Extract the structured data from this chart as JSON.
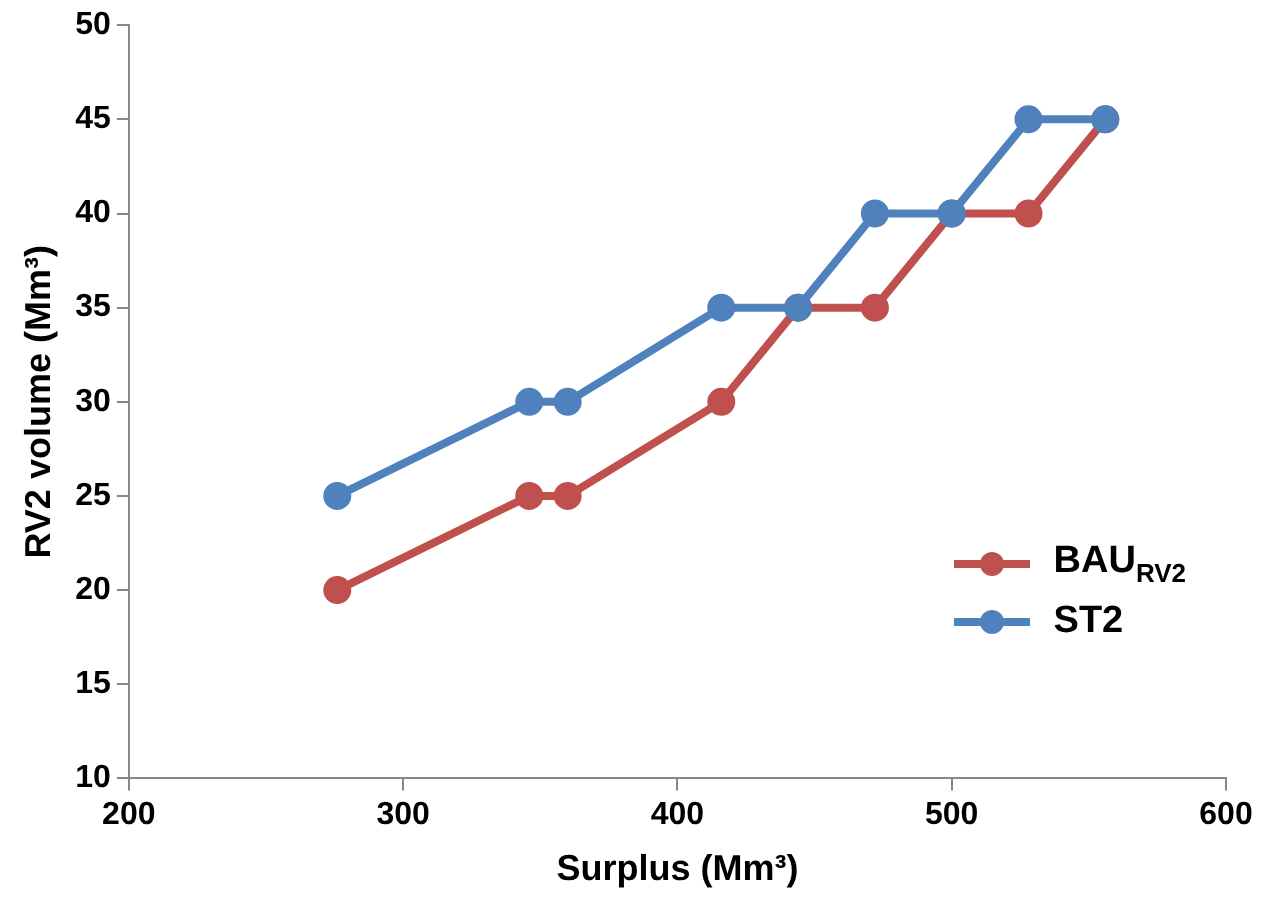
{
  "chart_data": {
    "type": "line",
    "xlabel": "Surplus (Mm³)",
    "ylabel": "RV2 volume (Mm³)",
    "xlim": [
      200,
      600
    ],
    "xticks": [
      200,
      300,
      400,
      500,
      600
    ],
    "ylim": [
      10,
      50
    ],
    "yticks": [
      10,
      15,
      20,
      25,
      30,
      35,
      40,
      45,
      50
    ],
    "grid": false,
    "legend": "right",
    "marker": "circle",
    "line_style": "solid",
    "series": [
      {
        "name": "BAU$_{RV2}$",
        "color": "#c0504d",
        "x": [
          276,
          346,
          360,
          416,
          444,
          472,
          500,
          528,
          556
        ],
        "values": [
          20,
          25,
          25,
          30,
          35,
          35,
          40,
          40,
          45
        ]
      },
      {
        "name": "ST2",
        "color": "#4f81bd",
        "x": [
          276,
          346,
          360,
          416,
          444,
          472,
          500,
          528,
          556
        ],
        "values": [
          25,
          30,
          30,
          35,
          35,
          40,
          40,
          45,
          45
        ]
      }
    ]
  }
}
